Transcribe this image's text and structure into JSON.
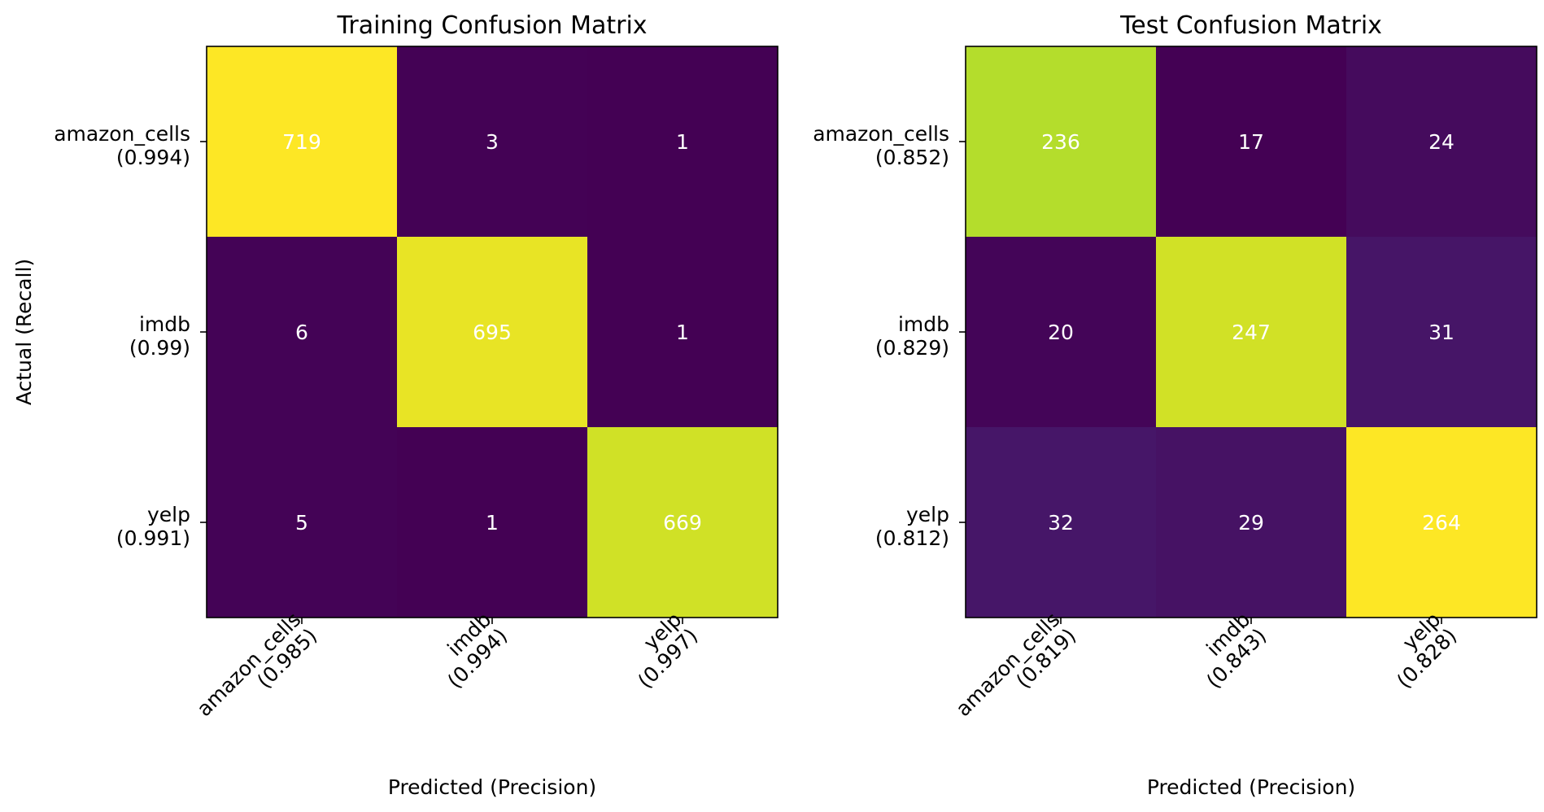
{
  "chart_data": [
    {
      "type": "heatmap",
      "title": "Training Confusion Matrix",
      "xlabel": "Predicted (Precision)",
      "ylabel": "Actual (Recall)",
      "x_ticks": [
        {
          "line1": "amazon_cells",
          "line2": "(0.985)"
        },
        {
          "line1": "imdb",
          "line2": "(0.994)"
        },
        {
          "line1": "yelp",
          "line2": "(0.997)"
        }
      ],
      "y_ticks": [
        {
          "line1": "amazon_cells",
          "line2": "(0.994)"
        },
        {
          "line1": "imdb",
          "line2": "(0.99)"
        },
        {
          "line1": "yelp",
          "line2": "(0.991)"
        }
      ],
      "matrix": [
        [
          719,
          3,
          1
        ],
        [
          6,
          695,
          1
        ],
        [
          5,
          1,
          669
        ]
      ],
      "colormap": "viridis"
    },
    {
      "type": "heatmap",
      "title": "Test Confusion Matrix",
      "xlabel": "Predicted (Precision)",
      "ylabel": "",
      "x_ticks": [
        {
          "line1": "amazon_cells",
          "line2": "(0.819)"
        },
        {
          "line1": "imdb",
          "line2": "(0.843)"
        },
        {
          "line1": "yelp",
          "line2": "(0.828)"
        }
      ],
      "y_ticks": [
        {
          "line1": "amazon_cells",
          "line2": "(0.852)"
        },
        {
          "line1": "imdb",
          "line2": "(0.829)"
        },
        {
          "line1": "yelp",
          "line2": "(0.812)"
        }
      ],
      "matrix": [
        [
          236,
          17,
          24
        ],
        [
          20,
          247,
          31
        ],
        [
          32,
          29,
          264
        ]
      ],
      "colormap": "viridis"
    }
  ]
}
